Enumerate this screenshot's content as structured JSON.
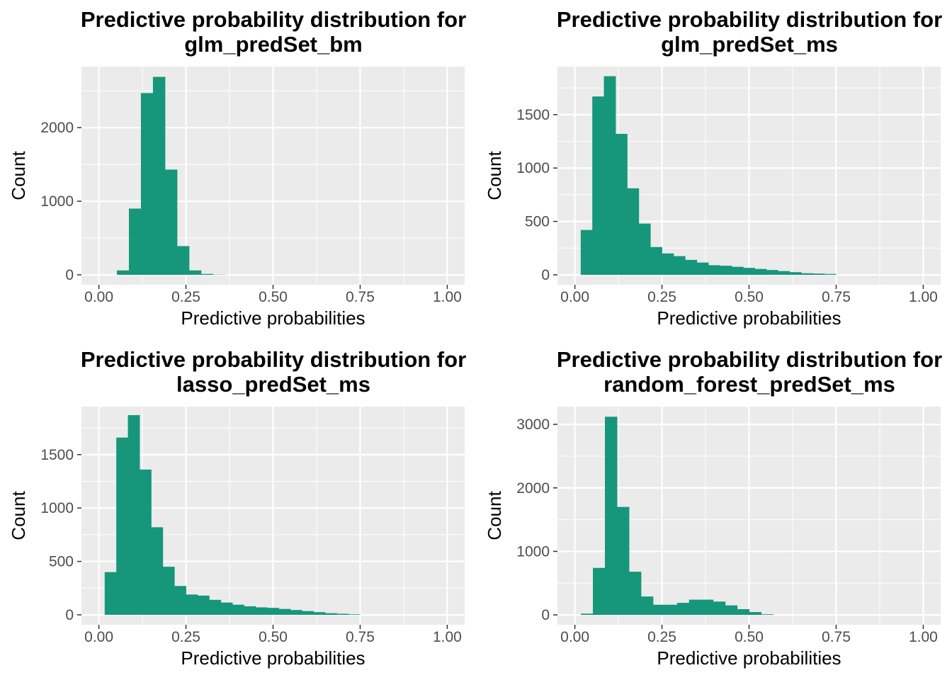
{
  "chart_data": [
    {
      "type": "bar",
      "title": [
        "Predictive probability distribution for",
        "glm_predSet_bm"
      ],
      "xlabel": "Predictive probabilities",
      "ylabel": "Count",
      "xlim": [
        -0.05,
        1.05
      ],
      "ylim": [
        -135,
        2830
      ],
      "xticks": [
        0,
        0.25,
        0.5,
        0.75,
        1
      ],
      "xtick_labels": [
        "0.00",
        "0.25",
        "0.50",
        "0.75",
        "1.00"
      ],
      "yticks": [
        0,
        1000,
        2000
      ],
      "ytick_labels": [
        "0",
        "1000",
        "2000"
      ],
      "grid": true,
      "bin_width": 0.0345,
      "bins_start": 0.0517,
      "values": [
        60,
        900,
        2470,
        2690,
        1430,
        390,
        60,
        12,
        3,
        0,
        0,
        0,
        0,
        0,
        0,
        0,
        0,
        0,
        0,
        0,
        0,
        0,
        0,
        0,
        0,
        0,
        0,
        0
      ],
      "color": "#16967A"
    },
    {
      "type": "bar",
      "title": [
        "Predictive probability distribution for",
        "glm_predSet_ms"
      ],
      "xlabel": "Predictive probabilities",
      "ylabel": "Count",
      "xlim": [
        -0.05,
        1.05
      ],
      "ylim": [
        -93,
        1950
      ],
      "xticks": [
        0,
        0.25,
        0.5,
        0.75,
        1
      ],
      "xtick_labels": [
        "0.00",
        "0.25",
        "0.50",
        "0.75",
        "1.00"
      ],
      "yticks": [
        0,
        500,
        1000,
        1500
      ],
      "ytick_labels": [
        "0",
        "500",
        "1000",
        "1500"
      ],
      "grid": true,
      "bin_width": 0.0333,
      "bins_start": 0.0167,
      "values": [
        420,
        1670,
        1860,
        1320,
        810,
        480,
        260,
        200,
        175,
        140,
        115,
        90,
        85,
        75,
        65,
        55,
        45,
        35,
        25,
        15,
        12,
        8,
        0,
        0,
        0,
        0,
        0,
        0,
        0
      ],
      "color": "#16967A"
    },
    {
      "type": "bar",
      "title": [
        "Predictive probability distribution for",
        "lasso_predSet_ms"
      ],
      "xlabel": "Predictive probabilities",
      "ylabel": "Count",
      "xlim": [
        -0.05,
        1.05
      ],
      "ylim": [
        -93,
        1950
      ],
      "xticks": [
        0,
        0.25,
        0.5,
        0.75,
        1
      ],
      "xtick_labels": [
        "0.00",
        "0.25",
        "0.50",
        "0.75",
        "1.00"
      ],
      "yticks": [
        0,
        500,
        1000,
        1500
      ],
      "ytick_labels": [
        "0",
        "500",
        "1000",
        "1500"
      ],
      "grid": true,
      "bin_width": 0.0333,
      "bins_start": 0.0167,
      "values": [
        400,
        1660,
        1870,
        1360,
        820,
        450,
        270,
        190,
        180,
        140,
        115,
        95,
        80,
        70,
        65,
        55,
        45,
        35,
        25,
        15,
        10,
        5,
        0,
        0,
        0,
        0,
        0,
        0,
        0
      ],
      "color": "#16967A"
    },
    {
      "type": "bar",
      "title": [
        "Predictive probability distribution for",
        "random_forest_predSet_ms"
      ],
      "xlabel": "Predictive probabilities",
      "ylabel": "Count",
      "xlim": [
        -0.05,
        1.05
      ],
      "ylim": [
        -155,
        3280
      ],
      "xticks": [
        0,
        0.25,
        0.5,
        0.75,
        1
      ],
      "xtick_labels": [
        "0.00",
        "0.25",
        "0.50",
        "0.75",
        "1.00"
      ],
      "yticks": [
        0,
        1000,
        2000,
        3000
      ],
      "ytick_labels": [
        "0",
        "1000",
        "2000",
        "3000"
      ],
      "grid": true,
      "bin_width": 0.0345,
      "bins_start": 0.0172,
      "values": [
        20,
        740,
        3120,
        1700,
        680,
        290,
        160,
        160,
        190,
        240,
        240,
        210,
        150,
        90,
        45,
        10,
        0,
        0,
        0,
        0,
        0,
        0,
        0,
        0,
        0,
        0,
        0,
        0
      ],
      "color": "#16967A"
    }
  ]
}
